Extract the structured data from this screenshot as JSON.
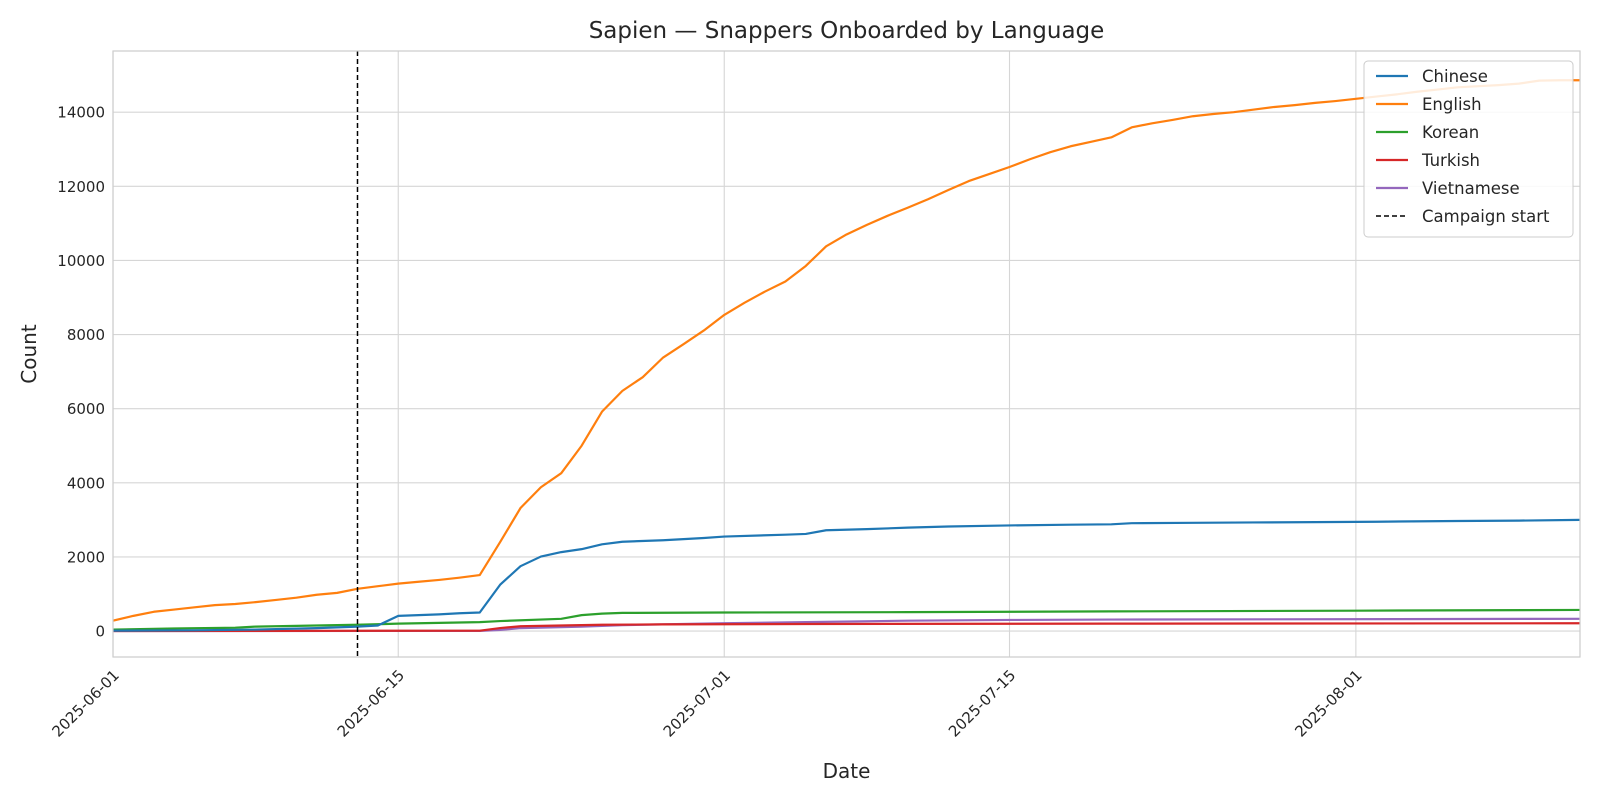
{
  "chart_data": {
    "type": "line",
    "title": "Sapien — Snappers Onboarded by Language",
    "xlabel": "Date",
    "ylabel": "Count",
    "x_range": [
      "2025-06-01",
      "2025-08-12"
    ],
    "ylim": [
      -700,
      15650
    ],
    "x_ticks": [
      "2025-06-01",
      "2025-06-15",
      "2025-07-01",
      "2025-07-15",
      "2025-08-01"
    ],
    "y_ticks": [
      0,
      2000,
      4000,
      6000,
      8000,
      10000,
      12000,
      14000
    ],
    "grid": true,
    "legend_position": "top-right",
    "series": [
      {
        "name": "Chinese",
        "color": "#1f77b4",
        "points": [
          [
            "2025-06-01",
            10
          ],
          [
            "2025-06-05",
            20
          ],
          [
            "2025-06-08",
            40
          ],
          [
            "2025-06-11",
            80
          ],
          [
            "2025-06-13",
            120
          ],
          [
            "2025-06-14",
            150
          ],
          [
            "2025-06-15",
            410
          ],
          [
            "2025-06-17",
            450
          ],
          [
            "2025-06-18",
            480
          ],
          [
            "2025-06-19",
            500
          ],
          [
            "2025-06-20",
            1250
          ],
          [
            "2025-06-21",
            1750
          ],
          [
            "2025-06-22",
            2010
          ],
          [
            "2025-06-23",
            2130
          ],
          [
            "2025-06-24",
            2210
          ],
          [
            "2025-06-25",
            2340
          ],
          [
            "2025-06-26",
            2410
          ],
          [
            "2025-06-28",
            2450
          ],
          [
            "2025-06-30",
            2510
          ],
          [
            "2025-07-01",
            2550
          ],
          [
            "2025-07-04",
            2600
          ],
          [
            "2025-07-05",
            2620
          ],
          [
            "2025-07-06",
            2720
          ],
          [
            "2025-07-08",
            2750
          ],
          [
            "2025-07-10",
            2790
          ],
          [
            "2025-07-12",
            2820
          ],
          [
            "2025-07-15",
            2850
          ],
          [
            "2025-07-18",
            2870
          ],
          [
            "2025-07-20",
            2880
          ],
          [
            "2025-07-21",
            2910
          ],
          [
            "2025-07-24",
            2920
          ],
          [
            "2025-07-27",
            2930
          ],
          [
            "2025-07-30",
            2940
          ],
          [
            "2025-08-02",
            2950
          ],
          [
            "2025-08-06",
            2970
          ],
          [
            "2025-08-09",
            2980
          ],
          [
            "2025-08-12",
            3000
          ]
        ]
      },
      {
        "name": "English",
        "color": "#ff7f0e",
        "points": [
          [
            "2025-06-01",
            280
          ],
          [
            "2025-06-02",
            410
          ],
          [
            "2025-06-03",
            520
          ],
          [
            "2025-06-04",
            580
          ],
          [
            "2025-06-05",
            640
          ],
          [
            "2025-06-06",
            700
          ],
          [
            "2025-06-07",
            730
          ],
          [
            "2025-06-08",
            780
          ],
          [
            "2025-06-09",
            840
          ],
          [
            "2025-06-10",
            900
          ],
          [
            "2025-06-11",
            980
          ],
          [
            "2025-06-12",
            1030
          ],
          [
            "2025-06-13",
            1140
          ],
          [
            "2025-06-14",
            1210
          ],
          [
            "2025-06-15",
            1280
          ],
          [
            "2025-06-16",
            1330
          ],
          [
            "2025-06-17",
            1380
          ],
          [
            "2025-06-18",
            1440
          ],
          [
            "2025-06-19",
            1510
          ],
          [
            "2025-06-20",
            2400
          ],
          [
            "2025-06-21",
            3320
          ],
          [
            "2025-06-22",
            3880
          ],
          [
            "2025-06-23",
            4260
          ],
          [
            "2025-06-24",
            5000
          ],
          [
            "2025-06-25",
            5920
          ],
          [
            "2025-06-26",
            6480
          ],
          [
            "2025-06-27",
            6850
          ],
          [
            "2025-06-28",
            7380
          ],
          [
            "2025-06-29",
            7740
          ],
          [
            "2025-06-30",
            8110
          ],
          [
            "2025-07-01",
            8530
          ],
          [
            "2025-07-02",
            8860
          ],
          [
            "2025-07-03",
            9160
          ],
          [
            "2025-07-04",
            9430
          ],
          [
            "2025-07-05",
            9850
          ],
          [
            "2025-07-06",
            10380
          ],
          [
            "2025-07-07",
            10700
          ],
          [
            "2025-07-08",
            10960
          ],
          [
            "2025-07-09",
            11200
          ],
          [
            "2025-07-10",
            11420
          ],
          [
            "2025-07-11",
            11650
          ],
          [
            "2025-07-12",
            11900
          ],
          [
            "2025-07-13",
            12140
          ],
          [
            "2025-07-14",
            12330
          ],
          [
            "2025-07-15",
            12520
          ],
          [
            "2025-07-16",
            12730
          ],
          [
            "2025-07-17",
            12920
          ],
          [
            "2025-07-18",
            13080
          ],
          [
            "2025-07-19",
            13200
          ],
          [
            "2025-07-20",
            13320
          ],
          [
            "2025-07-21",
            13590
          ],
          [
            "2025-07-22",
            13700
          ],
          [
            "2025-07-23",
            13790
          ],
          [
            "2025-07-24",
            13890
          ],
          [
            "2025-07-25",
            13950
          ],
          [
            "2025-07-26",
            14000
          ],
          [
            "2025-07-27",
            14070
          ],
          [
            "2025-07-28",
            14140
          ],
          [
            "2025-07-29",
            14190
          ],
          [
            "2025-07-30",
            14250
          ],
          [
            "2025-07-31",
            14300
          ],
          [
            "2025-08-01",
            14360
          ],
          [
            "2025-08-02",
            14420
          ],
          [
            "2025-08-03",
            14480
          ],
          [
            "2025-08-04",
            14550
          ],
          [
            "2025-08-05",
            14610
          ],
          [
            "2025-08-06",
            14670
          ],
          [
            "2025-08-07",
            14700
          ],
          [
            "2025-08-08",
            14730
          ],
          [
            "2025-08-09",
            14770
          ],
          [
            "2025-08-10",
            14850
          ],
          [
            "2025-08-11",
            14860
          ],
          [
            "2025-08-12",
            14860
          ]
        ]
      },
      {
        "name": "Korean",
        "color": "#2ca02c",
        "points": [
          [
            "2025-06-01",
            40
          ],
          [
            "2025-06-04",
            70
          ],
          [
            "2025-06-07",
            90
          ],
          [
            "2025-06-08",
            120
          ],
          [
            "2025-06-11",
            150
          ],
          [
            "2025-06-13",
            170
          ],
          [
            "2025-06-15",
            200
          ],
          [
            "2025-06-19",
            240
          ],
          [
            "2025-06-20",
            270
          ],
          [
            "2025-06-23",
            330
          ],
          [
            "2025-06-24",
            430
          ],
          [
            "2025-06-25",
            470
          ],
          [
            "2025-06-26",
            490
          ],
          [
            "2025-07-01",
            500
          ],
          [
            "2025-07-10",
            510
          ],
          [
            "2025-07-20",
            530
          ],
          [
            "2025-08-01",
            550
          ],
          [
            "2025-08-12",
            570
          ]
        ]
      },
      {
        "name": "Turkish",
        "color": "#d62728",
        "points": [
          [
            "2025-06-01",
            0
          ],
          [
            "2025-06-19",
            10
          ],
          [
            "2025-06-20",
            80
          ],
          [
            "2025-06-21",
            130
          ],
          [
            "2025-06-23",
            150
          ],
          [
            "2025-06-25",
            170
          ],
          [
            "2025-06-28",
            180
          ],
          [
            "2025-07-05",
            190
          ],
          [
            "2025-07-20",
            200
          ],
          [
            "2025-08-12",
            210
          ]
        ]
      },
      {
        "name": "Vietnamese",
        "color": "#9467bd",
        "points": [
          [
            "2025-06-01",
            0
          ],
          [
            "2025-06-19",
            5
          ],
          [
            "2025-06-20",
            30
          ],
          [
            "2025-06-21",
            80
          ],
          [
            "2025-06-24",
            120
          ],
          [
            "2025-06-26",
            160
          ],
          [
            "2025-07-01",
            210
          ],
          [
            "2025-07-05",
            240
          ],
          [
            "2025-07-10",
            280
          ],
          [
            "2025-07-15",
            300
          ],
          [
            "2025-07-20",
            310
          ],
          [
            "2025-08-12",
            330
          ]
        ]
      }
    ],
    "annotations": [
      {
        "type": "vline",
        "x": "2025-06-13",
        "style": "dashed",
        "color": "#000000",
        "label": "Campaign start"
      }
    ]
  }
}
